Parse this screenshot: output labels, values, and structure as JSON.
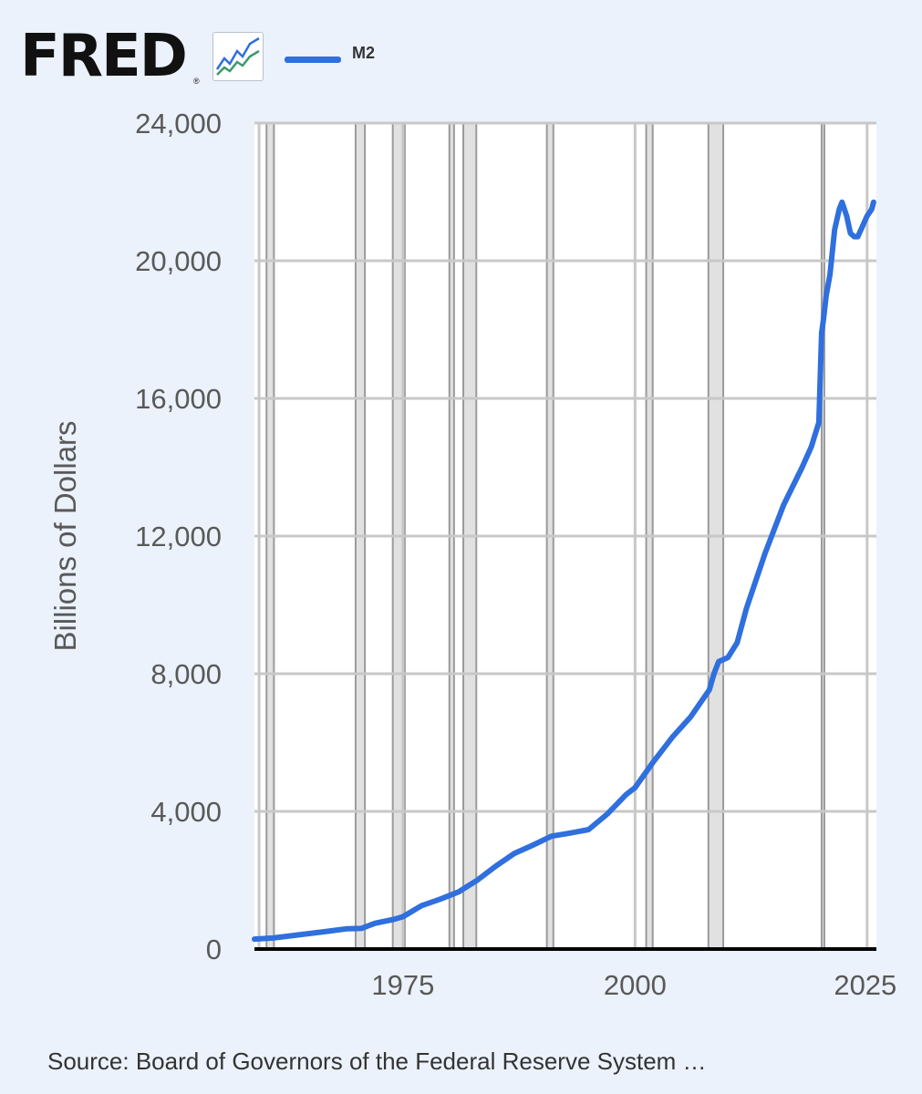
{
  "header": {
    "logo_text": "FRED",
    "logo_mark": "®",
    "icon": "line-chart-icon"
  },
  "legend": {
    "series_label": "M2",
    "color": "#2f6fde"
  },
  "source": {
    "text": "Source: Board of Governors of the Federal Reserve System …"
  },
  "colors": {
    "background": "#ebf2fb",
    "plot_background": "#ffffff",
    "grid": "#c8c8c8",
    "recession_shading": "#e1e1e1",
    "line": "#2f6fde",
    "axis": "#000000"
  },
  "chart_data": {
    "type": "line",
    "title": "",
    "xlabel": "",
    "ylabel": "Billions of Dollars",
    "xlim": [
      1959,
      2026
    ],
    "ylim": [
      0,
      24000
    ],
    "x_ticks": [
      1975,
      2000,
      2025
    ],
    "x_tick_labels": [
      "1975",
      "2000",
      "2025"
    ],
    "y_ticks": [
      0,
      4000,
      8000,
      12000,
      16000,
      20000,
      24000
    ],
    "y_tick_labels": [
      "0",
      "4,000",
      "8,000",
      "12,000",
      "16,000",
      "20,000",
      "24,000"
    ],
    "grid": true,
    "legend_position": "top-left",
    "recessions": [
      [
        1960.3,
        1961.1
      ],
      [
        1969.9,
        1970.9
      ],
      [
        1973.9,
        1975.2
      ],
      [
        1980.0,
        1980.5
      ],
      [
        1981.5,
        1982.9
      ],
      [
        1990.5,
        1991.2
      ],
      [
        2001.2,
        2001.9
      ],
      [
        2007.9,
        2009.5
      ],
      [
        2020.1,
        2020.3
      ]
    ],
    "series": [
      {
        "name": "M2",
        "x": [
          1959,
          1961,
          1964,
          1967,
          1969,
          1970.5,
          1972,
          1974,
          1975,
          1977,
          1979,
          1981,
          1983,
          1985,
          1987,
          1989,
          1991,
          1993,
          1995,
          1997,
          1999,
          2000,
          2001,
          2002,
          2004,
          2006,
          2008,
          2008.5,
          2009,
          2010,
          2011,
          2012,
          2014,
          2016,
          2018,
          2019,
          2019.8,
          2020.1,
          2020.3,
          2020.6,
          2021,
          2021.5,
          2022,
          2022.3,
          2022.8,
          2023.2,
          2023.6,
          2024,
          2024.5,
          2025,
          2025.5,
          2025.7
        ],
        "y": [
          290,
          320,
          420,
          520,
          590,
          600,
          750,
          860,
          940,
          1260,
          1450,
          1660,
          2000,
          2410,
          2780,
          3020,
          3280,
          3370,
          3470,
          3920,
          4480,
          4690,
          5070,
          5450,
          6150,
          6750,
          7530,
          8000,
          8350,
          8470,
          8900,
          9900,
          11500,
          12900,
          14000,
          14600,
          15300,
          17900,
          18300,
          19000,
          19600,
          20900,
          21500,
          21700,
          21300,
          20800,
          20700,
          20700,
          21000,
          21300,
          21500,
          21700
        ]
      }
    ]
  }
}
